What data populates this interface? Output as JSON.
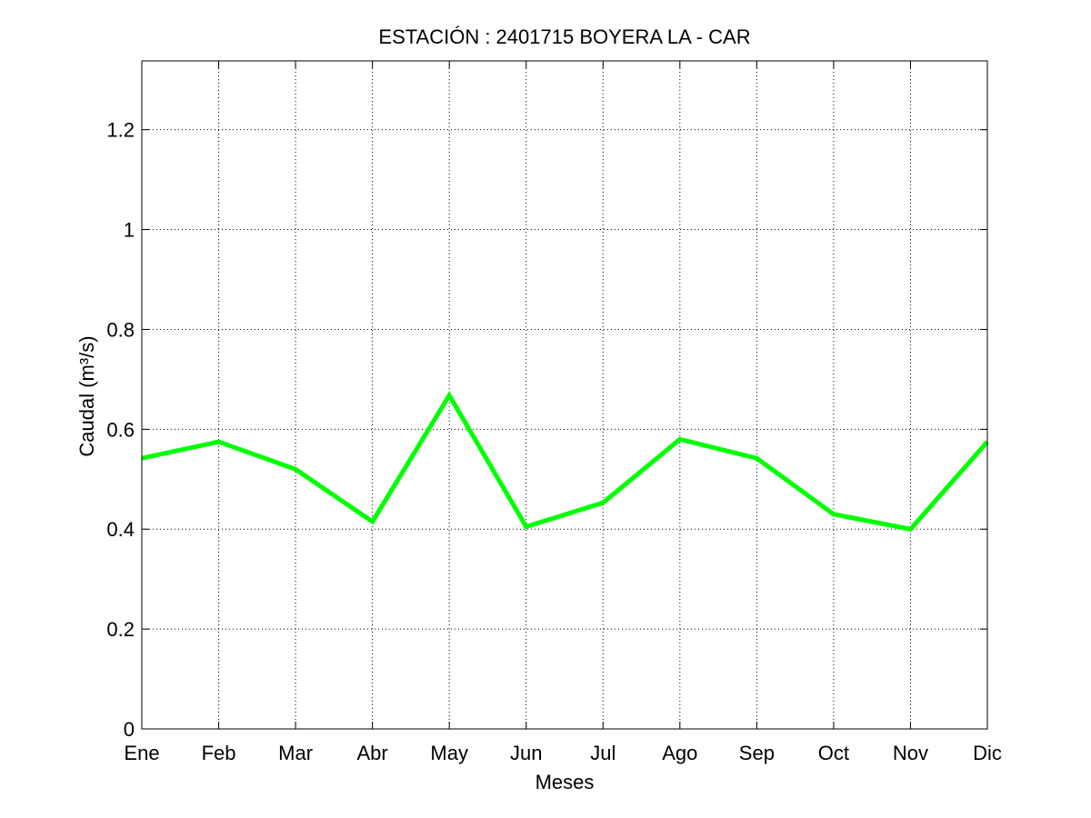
{
  "chart_data": {
    "type": "line",
    "title": "ESTACIÓN :  2401715  BOYERA LA - CAR",
    "xlabel": "Meses",
    "ylabel": "Caudal (m³/s)",
    "categories": [
      "Ene",
      "Feb",
      "Mar",
      "Abr",
      "May",
      "Jun",
      "Jul",
      "Ago",
      "Sep",
      "Oct",
      "Nov",
      "Dic"
    ],
    "series": [
      {
        "values": [
          0.542,
          0.575,
          0.52,
          0.415,
          0.668,
          0.405,
          0.453,
          0.58,
          0.542,
          0.43,
          0.4,
          0.575
        ],
        "color": "#00ff00"
      }
    ],
    "ylim": [
      0,
      1.3377
    ],
    "yticks": [
      0,
      0.2,
      0.4,
      0.6,
      0.8,
      1,
      1.2
    ],
    "yticklabels": [
      "0",
      "0.2",
      "0.4",
      "0.6",
      "0.8",
      "1",
      "1.2"
    ],
    "grid": true,
    "grid_style": "dotted"
  }
}
